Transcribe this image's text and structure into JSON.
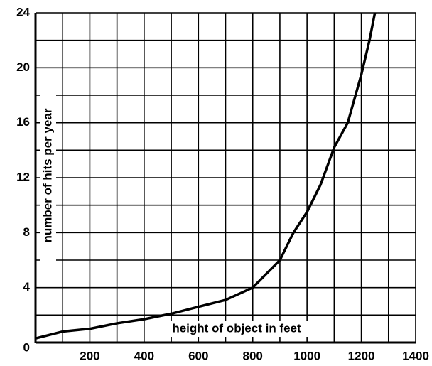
{
  "chart_data": {
    "type": "line",
    "x_label": "height of object in feet",
    "y_label": "number of hits per year",
    "x": [
      0,
      100,
      200,
      300,
      400,
      500,
      600,
      700,
      800,
      900,
      950,
      1000,
      1050,
      1100,
      1150,
      1200,
      1230,
      1250
    ],
    "values": [
      0.3,
      0.8,
      1.0,
      1.4,
      1.7,
      2.1,
      2.6,
      3.1,
      4.0,
      6.0,
      8.0,
      9.5,
      11.5,
      14.2,
      16.0,
      19.5,
      22.0,
      24.0
    ],
    "color": "#000000",
    "xlim": [
      0,
      1400
    ],
    "ylim": [
      0,
      24
    ],
    "xticks": [
      200,
      400,
      600,
      800,
      1000,
      1200,
      1400
    ],
    "minor_xticks": [
      100,
      300,
      500,
      700,
      900,
      1100,
      1300
    ],
    "yticks": [
      0,
      4,
      8,
      12,
      16,
      20,
      24
    ],
    "minor_yticks": [
      2,
      6,
      10,
      14,
      18,
      22
    ],
    "grid": true
  }
}
